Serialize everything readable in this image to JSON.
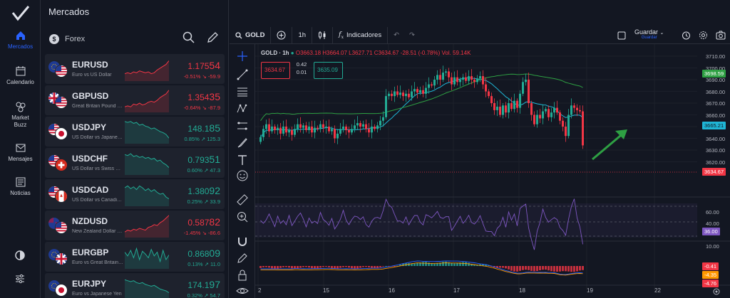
{
  "sidebar": {
    "items": [
      {
        "label": "Mercados"
      },
      {
        "label": "Calendario"
      },
      {
        "label": "Market Buzz"
      },
      {
        "label": "Mensajes"
      },
      {
        "label": "Noticias"
      }
    ]
  },
  "markets": {
    "title": "Mercados",
    "category": "Forex",
    "rows": [
      {
        "symbol": "EURUSD",
        "name": "Euro vs US Dollar",
        "price_main": "1.175",
        "price_big": "54",
        "change": "-0.51% ↘ -59.9",
        "dir": "down",
        "spark": [
          8,
          9,
          8,
          10,
          9,
          11,
          10,
          9,
          10,
          8,
          9,
          12,
          14,
          16,
          18,
          22
        ]
      },
      {
        "symbol": "GBPUSD",
        "name": "Great Britain Pound vs US Dollar",
        "price_main": "1.354",
        "price_big": "35",
        "change": "-0.64% ↘ -87.9",
        "dir": "down",
        "spark": [
          6,
          7,
          6,
          9,
          8,
          10,
          8,
          9,
          11,
          12,
          11,
          13,
          16,
          18,
          20,
          24
        ]
      },
      {
        "symbol": "USDJPY",
        "name": "US Dollar vs Japanese Yen",
        "price_main": "148.1",
        "price_big": "85",
        "change": "0.85% ↗ 125.3",
        "dir": "up",
        "spark": [
          24,
          23,
          24,
          22,
          23,
          20,
          21,
          19,
          18,
          16,
          17,
          15,
          13,
          12,
          10,
          6
        ]
      },
      {
        "symbol": "USDCHF",
        "name": "US Dollar vs Swiss Franc",
        "price_main": "0.793",
        "price_big": "51",
        "change": "0.60% ↗ 47.3",
        "dir": "up",
        "spark": [
          22,
          21,
          23,
          20,
          21,
          19,
          20,
          18,
          19,
          17,
          18,
          15,
          16,
          13,
          11,
          8
        ]
      },
      {
        "symbol": "USDCAD",
        "name": "US Dollar vs Canadian Dollar",
        "price_main": "1.380",
        "price_big": "92",
        "change": "0.25% ↗ 33.9",
        "dir": "up",
        "spark": [
          20,
          22,
          19,
          21,
          18,
          22,
          20,
          17,
          19,
          16,
          18,
          15,
          13,
          14,
          10,
          8
        ]
      },
      {
        "symbol": "NZDUSD",
        "name": "New Zealand Dollar vs US Dollar",
        "price_main": "0.587",
        "price_big": "82",
        "change": "-1.45% ↘ -86.6",
        "dir": "down",
        "spark": [
          6,
          8,
          7,
          9,
          8,
          10,
          9,
          8,
          11,
          12,
          14,
          13,
          16,
          18,
          21,
          24
        ]
      },
      {
        "symbol": "EURGBP",
        "name": "Euro vs Great Britain Pound",
        "price_main": "0.868",
        "price_big": "09",
        "change": "0.13% ↗ 11.0",
        "dir": "up",
        "spark": [
          18,
          14,
          20,
          12,
          22,
          10,
          19,
          16,
          12,
          21,
          14,
          18,
          8,
          20,
          10,
          15
        ]
      },
      {
        "symbol": "EURJPY",
        "name": "Euro vs Japanese Yen",
        "price_main": "174.1",
        "price_big": "97",
        "change": "0.32% ↗ 54.7",
        "dir": "up",
        "spark": [
          22,
          21,
          20,
          21,
          19,
          18,
          19,
          17,
          16,
          15,
          16,
          14,
          12,
          11,
          10,
          8
        ]
      }
    ]
  },
  "toolbar": {
    "symbol": "GOLD",
    "interval": "1h",
    "indicators": "Indicadores",
    "save": "Guardar",
    "save_sub": "Guardar"
  },
  "chart": {
    "legend_title": "GOLD · 1h",
    "ohlc": "O3663.18 H3664.07 L3627.71 C3634.67 -28.51 (-0.78%)",
    "vol": "Vol. 59.14K",
    "sell_price": "3634.67",
    "spread_top": "0.42",
    "spread_bot": "0.01",
    "buy_price": "3635.09",
    "price_axis": [
      "3710.00",
      "3700.00",
      "3690.00",
      "3680.00",
      "3670.00",
      "3660.00",
      "3650.00",
      "3640.00",
      "3630.00",
      "3620.00"
    ],
    "tags": {
      "ma_long": "3698.59",
      "ma_short": "3665.21",
      "last": "3634.67",
      "rsi": "36.00",
      "macd1": "-0.41",
      "macd2": "-4.35",
      "macd3": "-4.76"
    },
    "rsi_axis": [
      "60.00",
      "40.00"
    ],
    "macd_axis": [
      "10.00"
    ],
    "time_axis": [
      "2",
      "15",
      "16",
      "17",
      "18",
      "19",
      "22"
    ]
  }
}
